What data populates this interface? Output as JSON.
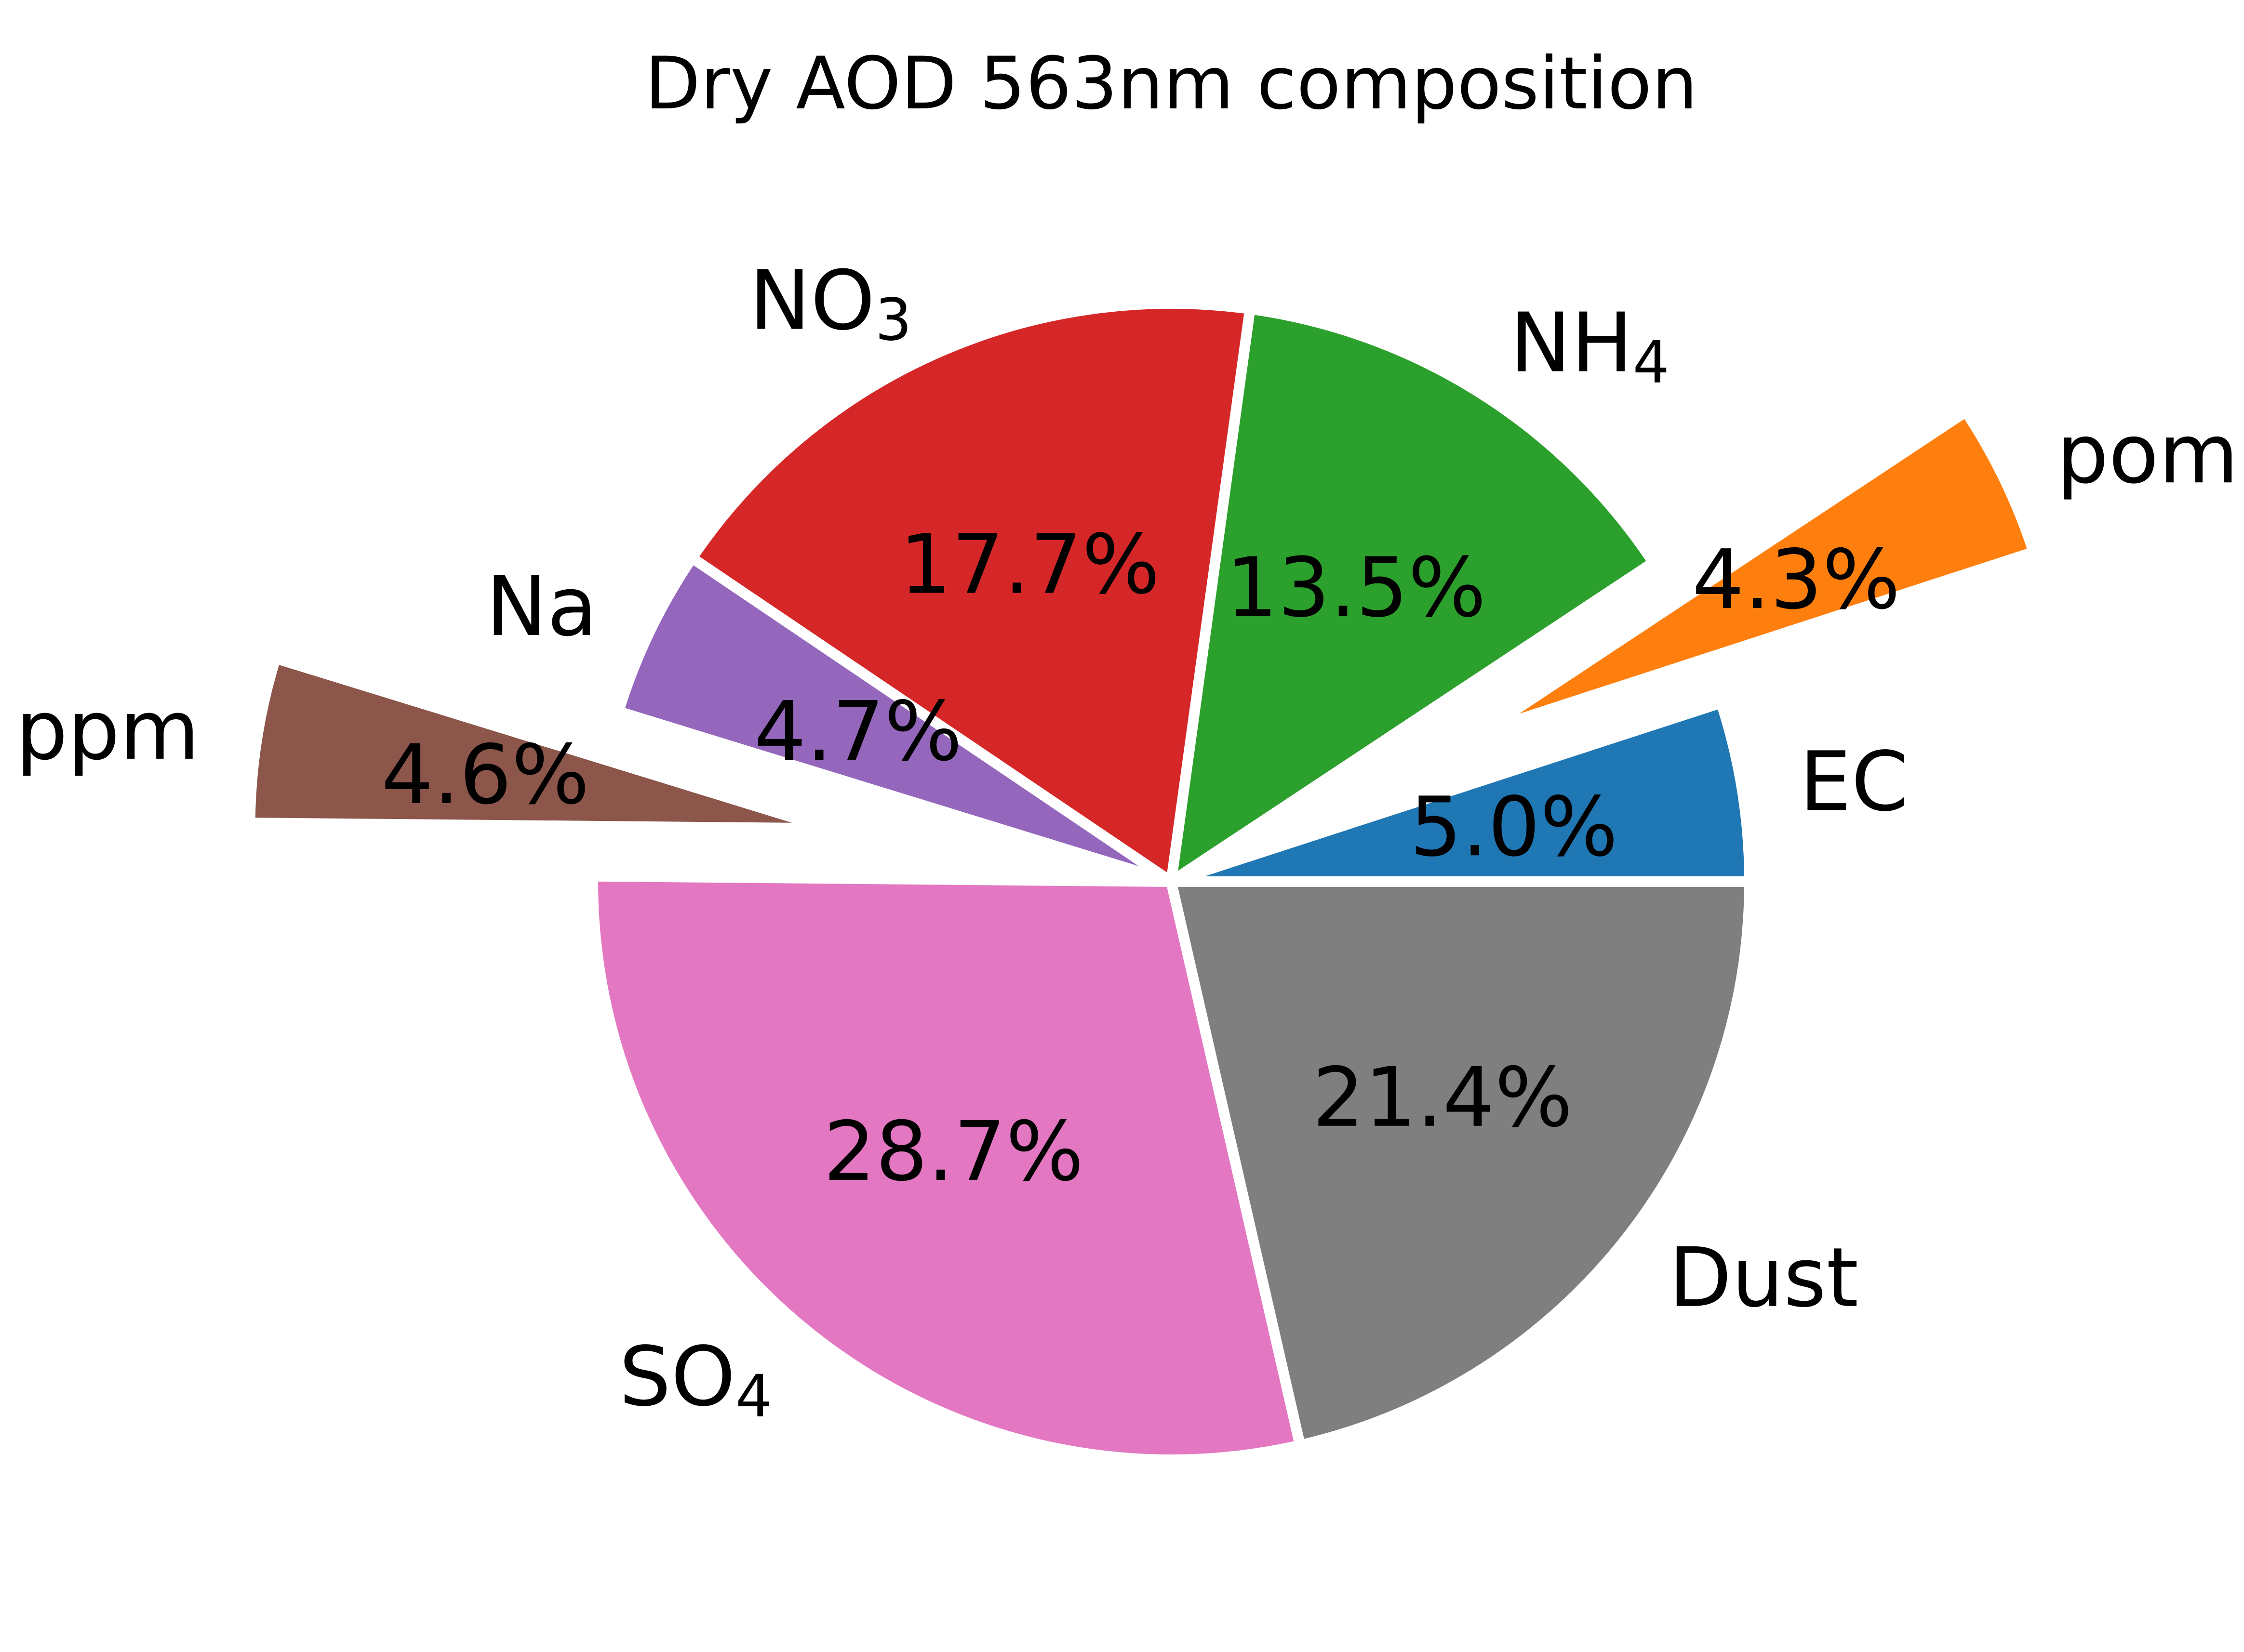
{
  "chart_data": {
    "type": "pie",
    "title": "Dry AOD 563nm composition",
    "start_angle_deg": 0,
    "direction": "counterclockwise",
    "slices": [
      {
        "label": "EC",
        "label_sub": "",
        "value": 5.0,
        "pct_label": "5.0%",
        "color": "#1f77b4",
        "exploded": false
      },
      {
        "label": "pom",
        "label_sub": "",
        "value": 4.3,
        "pct_label": "4.3%",
        "color": "#ff7f0e",
        "exploded": true
      },
      {
        "label": "NH",
        "label_sub": "4",
        "value": 13.5,
        "pct_label": "13.5%",
        "color": "#2ca02c",
        "exploded": false
      },
      {
        "label": "NO",
        "label_sub": "3",
        "value": 17.7,
        "pct_label": "17.7%",
        "color": "#d62728",
        "exploded": false
      },
      {
        "label": "Na",
        "label_sub": "",
        "value": 4.7,
        "pct_label": "4.7%",
        "color": "#9467bd",
        "exploded": false
      },
      {
        "label": "ppm",
        "label_sub": "",
        "value": 4.6,
        "pct_label": "4.6%",
        "color": "#8c564b",
        "exploded": true
      },
      {
        "label": "SO",
        "label_sub": "4",
        "value": 28.7,
        "pct_label": "28.7%",
        "color": "#e377c2",
        "exploded": false
      },
      {
        "label": "Dust",
        "label_sub": "",
        "value": 21.4,
        "pct_label": "21.4%",
        "color": "#7f7f7f",
        "exploded": false
      }
    ]
  }
}
